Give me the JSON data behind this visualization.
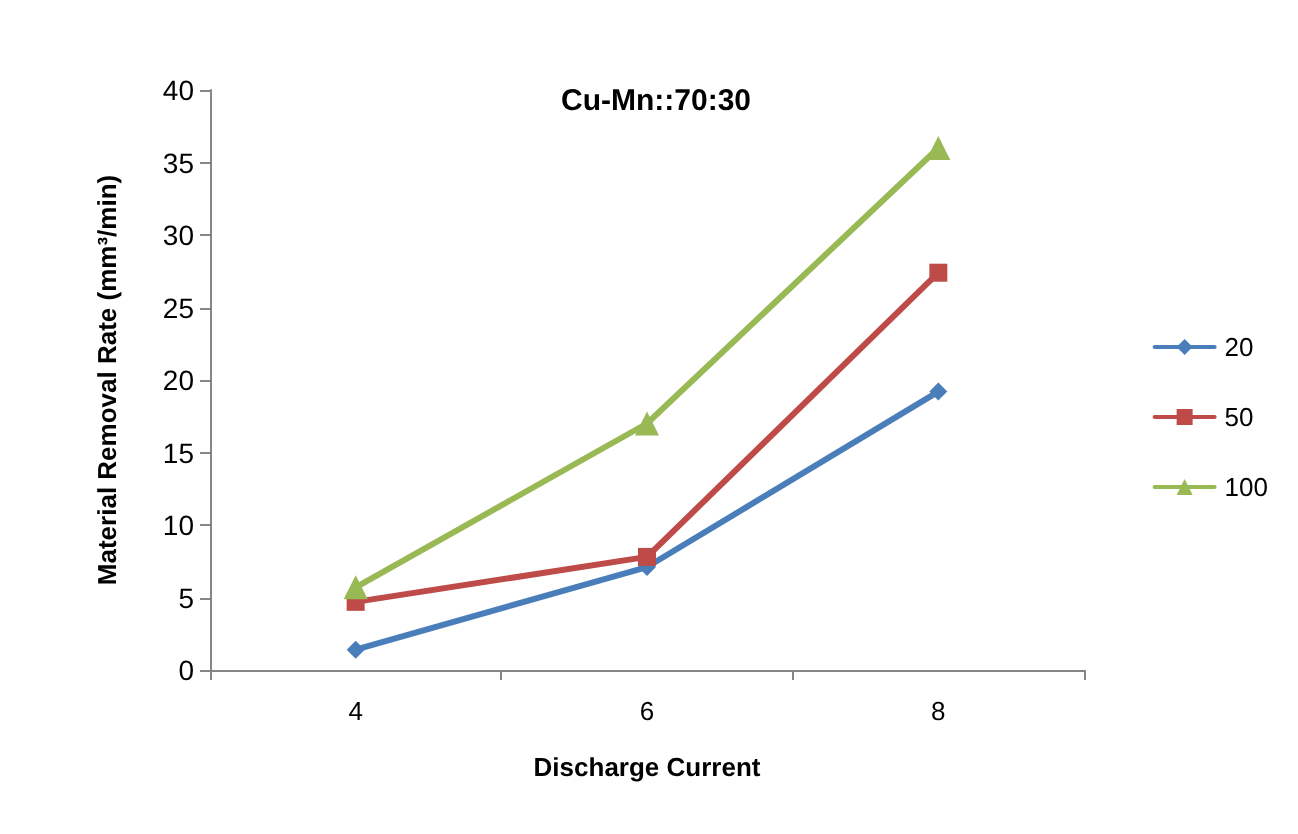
{
  "chart_data": {
    "type": "line",
    "title": "Cu-Mn::70:30",
    "xlabel": "Discharge Current",
    "ylabel": "Material Removal Rate (mm³/min)",
    "categories": [
      "4",
      "6",
      "8"
    ],
    "series": [
      {
        "name": "20",
        "color": "#4a7ebb",
        "marker": "diamond",
        "values": [
          1.4,
          7.1,
          19.2
        ]
      },
      {
        "name": "50",
        "color": "#be4b48",
        "marker": "square",
        "values": [
          4.7,
          7.8,
          27.4
        ]
      },
      {
        "name": "100",
        "color": "#98b954",
        "marker": "triangle",
        "values": [
          5.7,
          17.0,
          36.0
        ]
      }
    ],
    "ylim": [
      0,
      40
    ],
    "yticks": [
      0,
      5,
      10,
      15,
      20,
      25,
      30,
      35,
      40
    ],
    "grid": false,
    "legend": "right",
    "line_style": "solid"
  }
}
